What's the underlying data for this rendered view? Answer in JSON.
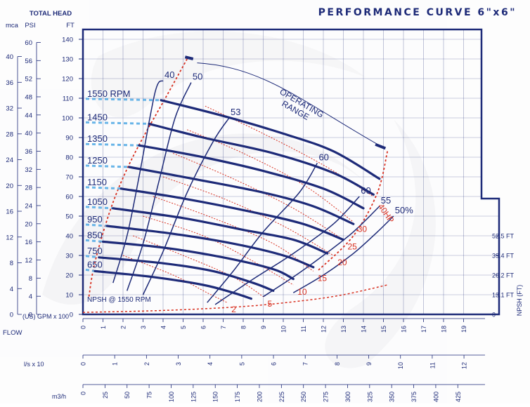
{
  "chart_data": {
    "type": "line",
    "title": "PERFORMANCE CURVE 6\"x6\"",
    "header_total_head": "TOTAL HEAD",
    "unit_mca": "mca",
    "unit_psi": "PSI",
    "unit_ft": "FT",
    "flow_label": "FLOW",
    "flow_gpm_label": "(US) GPM x 100",
    "flow_ls_label": "l/s     x 10",
    "flow_m3h_label": "m3/h",
    "npsh_axis_label": "NPSH (FT)",
    "ft_ticks": [
      "0",
      "10",
      "20",
      "30",
      "40",
      "50",
      "60",
      "70",
      "80",
      "90",
      "100",
      "110",
      "120",
      "130",
      "140"
    ],
    "psi_ticks": [
      "0",
      "4",
      "8",
      "12",
      "16",
      "20",
      "24",
      "28",
      "32",
      "36",
      "40",
      "44",
      "48",
      "52",
      "56",
      "60"
    ],
    "mca_ticks": [
      "0",
      "4",
      "8",
      "12",
      "16",
      "20",
      "24",
      "28",
      "32",
      "36",
      "40"
    ],
    "gpm_ticks": [
      "0",
      "1",
      "2",
      "3",
      "4",
      "5",
      "6",
      "7",
      "8",
      "9",
      "10",
      "11",
      "12",
      "13",
      "14",
      "15",
      "16",
      "17",
      "18",
      "19"
    ],
    "ls_ticks": [
      "0",
      "1",
      "2",
      "3",
      "4",
      "5",
      "6",
      "7",
      "8",
      "9",
      "10",
      "11",
      "12"
    ],
    "m3h_ticks": [
      "0",
      "25",
      "50",
      "75",
      "100",
      "125",
      "150",
      "175",
      "200",
      "225",
      "250",
      "275",
      "300",
      "325",
      "350",
      "375",
      "400",
      "425"
    ],
    "npsh_ticks": [
      "0",
      "13.1 FT",
      "26.2 FT",
      "39.4 FT",
      "52.5 FT"
    ],
    "xlim": [
      0,
      20
    ],
    "ylim": [
      0,
      145
    ],
    "speed_curves": [
      {
        "label": "1550 RPM",
        "points": [
          [
            3.9,
            109
          ],
          [
            7,
            101
          ],
          [
            10,
            92
          ],
          [
            12.5,
            83
          ],
          [
            14.8,
            69
          ]
        ]
      },
      {
        "label": "1450",
        "points": [
          [
            3.3,
            97
          ],
          [
            6,
            90
          ],
          [
            9.5,
            82
          ],
          [
            12.5,
            72
          ],
          [
            14.5,
            61
          ]
        ]
      },
      {
        "label": "1350",
        "points": [
          [
            2.8,
            86
          ],
          [
            6,
            80
          ],
          [
            9,
            73
          ],
          [
            12,
            64
          ],
          [
            14,
            54
          ]
        ]
      },
      {
        "label": "1250",
        "points": [
          [
            2.3,
            75
          ],
          [
            5.5,
            69
          ],
          [
            9,
            62
          ],
          [
            11.5,
            55
          ],
          [
            13.5,
            46
          ]
        ]
      },
      {
        "label": "1150",
        "points": [
          [
            1.9,
            64
          ],
          [
            5,
            59
          ],
          [
            8.5,
            52
          ],
          [
            11,
            46
          ],
          [
            13,
            38
          ]
        ]
      },
      {
        "label": "1050",
        "points": [
          [
            1.5,
            54
          ],
          [
            5,
            49
          ],
          [
            8,
            43
          ],
          [
            10.5,
            38
          ],
          [
            12.2,
            31
          ]
        ]
      },
      {
        "label": "950",
        "points": [
          [
            1.2,
            45
          ],
          [
            4.5,
            41
          ],
          [
            7.5,
            36
          ],
          [
            10,
            30
          ],
          [
            11.5,
            24
          ]
        ]
      },
      {
        "label": "850",
        "points": [
          [
            1,
            37
          ],
          [
            4,
            34
          ],
          [
            7,
            29
          ],
          [
            9.5,
            23
          ],
          [
            10.5,
            18
          ]
        ]
      },
      {
        "label": "750",
        "points": [
          [
            0.8,
            29
          ],
          [
            4,
            26
          ],
          [
            6.5,
            22
          ],
          [
            8.5,
            16
          ],
          [
            9.5,
            12
          ]
        ]
      },
      {
        "label": "650",
        "points": [
          [
            0.6,
            22
          ],
          [
            3.5,
            19
          ],
          [
            6,
            15
          ],
          [
            7.5,
            11
          ],
          [
            8.4,
            8
          ]
        ]
      }
    ],
    "efficiency_curves": [
      {
        "label": "40",
        "points": [
          [
            1.5,
            16
          ],
          [
            2.2,
            40
          ],
          [
            2.8,
            70
          ],
          [
            3.6,
            113
          ],
          [
            4,
            119
          ]
        ]
      },
      {
        "label": "50",
        "points": [
          [
            2.2,
            12
          ],
          [
            3,
            36
          ],
          [
            3.8,
            68
          ],
          [
            4.6,
            100
          ],
          [
            5.4,
            118
          ]
        ]
      },
      {
        "label": "53",
        "points": [
          [
            3,
            10
          ],
          [
            4,
            32
          ],
          [
            5.2,
            62
          ],
          [
            6.5,
            88
          ],
          [
            7.3,
            100
          ]
        ]
      },
      {
        "label": "60",
        "points": [
          [
            6.2,
            6
          ],
          [
            7.5,
            22
          ],
          [
            9,
            42
          ],
          [
            10.8,
            62
          ],
          [
            11.7,
            77
          ]
        ]
      },
      {
        "label": "60",
        "points": [
          [
            6.6,
            5
          ],
          [
            8.5,
            18
          ],
          [
            10.5,
            31
          ],
          [
            12.5,
            46
          ],
          [
            13.8,
            60
          ]
        ]
      },
      {
        "label": "55",
        "points": [
          [
            9,
            9
          ],
          [
            10.5,
            19
          ],
          [
            12,
            30
          ],
          [
            13.5,
            42
          ],
          [
            14.8,
            55
          ]
        ]
      },
      {
        "label": "50%",
        "points": [
          [
            10.5,
            11
          ],
          [
            12,
            20
          ],
          [
            13.5,
            31
          ],
          [
            14.7,
            42
          ],
          [
            15.5,
            50
          ]
        ]
      }
    ],
    "power_curves": [
      {
        "label": "40HP",
        "points": [
          [
            6.1,
            106
          ],
          [
            9,
            92
          ],
          [
            12,
            76
          ],
          [
            14.5,
            60
          ]
        ]
      },
      {
        "label": "30",
        "points": [
          [
            5.2,
            94
          ],
          [
            8,
            82
          ],
          [
            11,
            66
          ],
          [
            13.5,
            47
          ]
        ]
      },
      {
        "label": "25",
        "points": [
          [
            4.5,
            82
          ],
          [
            7.5,
            69
          ],
          [
            10.5,
            54
          ],
          [
            13,
            38
          ]
        ]
      },
      {
        "label": "20",
        "points": [
          [
            4,
            70
          ],
          [
            7,
            59
          ],
          [
            10,
            45
          ],
          [
            12.5,
            30
          ]
        ]
      },
      {
        "label": "15",
        "points": [
          [
            3.5,
            60
          ],
          [
            6.5,
            49
          ],
          [
            9.5,
            36
          ],
          [
            11.5,
            22
          ]
        ]
      },
      {
        "label": "10",
        "points": [
          [
            3,
            50
          ],
          [
            6,
            40
          ],
          [
            8.5,
            27
          ],
          [
            10.5,
            15
          ]
        ]
      },
      {
        "label": "5",
        "points": [
          [
            2.5,
            40
          ],
          [
            5,
            30
          ],
          [
            7.5,
            19
          ],
          [
            9,
            9
          ]
        ]
      },
      {
        "label": "2",
        "points": [
          [
            2,
            30
          ],
          [
            4.5,
            20
          ],
          [
            6.2,
            11
          ],
          [
            7.2,
            6
          ]
        ]
      }
    ],
    "operating_range_label": [
      "OPERATING",
      "RANGE"
    ],
    "operating_range_boundary": [
      [
        5.2,
        130
      ],
      [
        4,
        108
      ],
      [
        3,
        90
      ],
      [
        2.2,
        74
      ],
      [
        1.5,
        57
      ],
      [
        0.9,
        38
      ],
      [
        0.5,
        22
      ],
      [
        0.3,
        9
      ]
    ],
    "operating_range_right": [
      [
        15.2,
        83
      ],
      [
        14.7,
        62
      ],
      [
        13.5,
        40
      ],
      [
        11.7,
        22
      ]
    ],
    "npsh_label": "NPSH @ 1550 RPM",
    "npsh_curve": [
      [
        0,
        1
      ],
      [
        4,
        2
      ],
      [
        8,
        4
      ],
      [
        11,
        7
      ],
      [
        13,
        10
      ],
      [
        15.2,
        15
      ]
    ]
  },
  "colors": {
    "navy": "#1d2a78",
    "red": "#d83020",
    "light_blue": "#5aaee6",
    "grid": "#1d2a78"
  }
}
